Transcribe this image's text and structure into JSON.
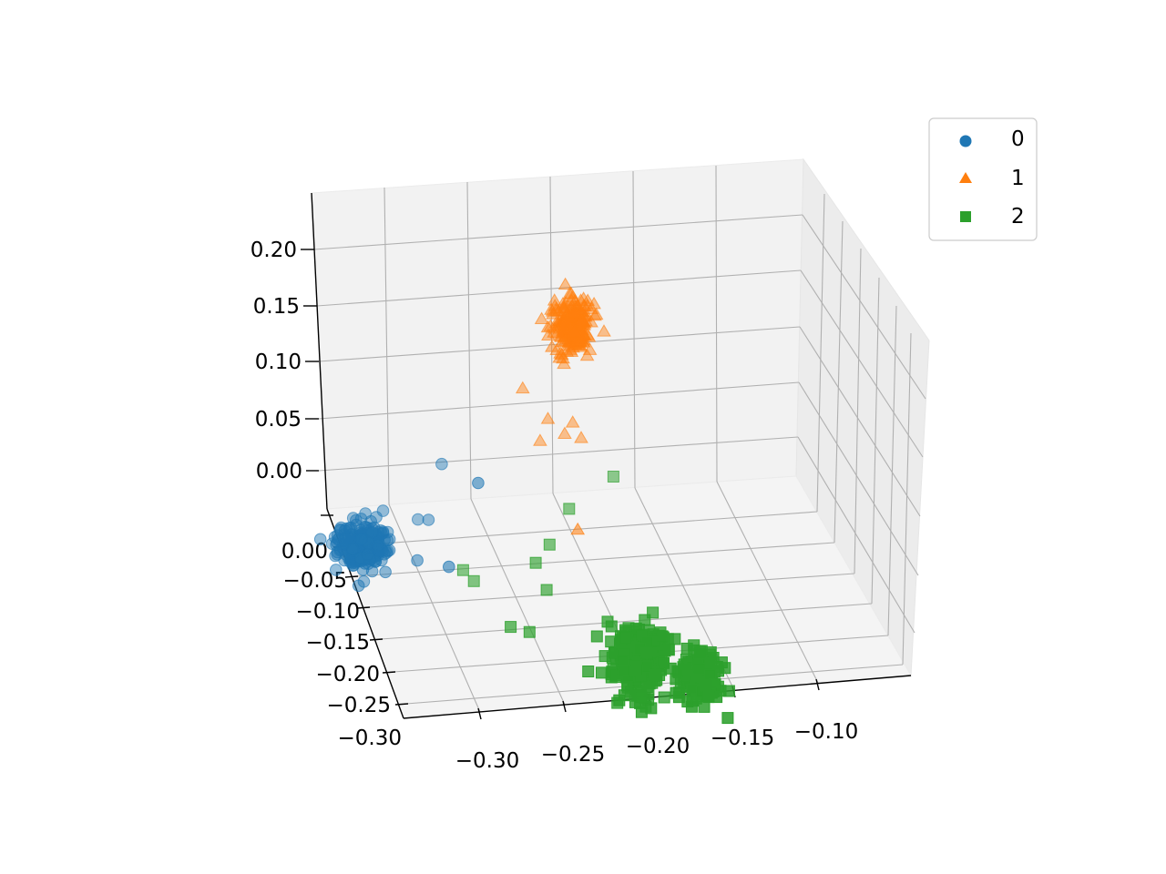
{
  "chart_data": {
    "type": "scatter",
    "dimensions": 3,
    "title": "",
    "xlabel": "",
    "ylabel": "",
    "zlabel": "",
    "x_ticks": [
      "−0.30",
      "−0.25",
      "−0.20",
      "−0.15",
      "−0.10"
    ],
    "y_ticks": [
      "0.00",
      "−0.05",
      "−0.10",
      "−0.15",
      "−0.20",
      "−0.25",
      "−0.30"
    ],
    "z_ticks": [
      "0.00",
      "0.05",
      "0.10",
      "0.15",
      "0.20"
    ],
    "xlim": [
      -0.32,
      -0.06
    ],
    "ylim": [
      -0.3,
      0.02
    ],
    "zlim": [
      -0.04,
      0.245
    ],
    "grid": true,
    "legend_position": "top-right",
    "series": [
      {
        "name": "0",
        "marker": "circle",
        "color": "#1f77b4",
        "clusters": [
          {
            "center": [
              -0.29,
              -0.01,
              0.005
            ],
            "spread": [
              0.008,
              0.006,
              0.01
            ],
            "count": 240
          }
        ],
        "points": [
          [
            -0.255,
            0.0,
            0.02
          ],
          [
            -0.25,
            -0.01,
            0.025
          ],
          [
            -0.24,
            0.0,
            0.07
          ],
          [
            -0.225,
            -0.05,
            0.08
          ],
          [
            -0.26,
            -0.03,
            0.0
          ],
          [
            -0.245,
            -0.06,
            0.01
          ]
        ]
      },
      {
        "name": "1",
        "marker": "triangle",
        "color": "#ff7f0e",
        "clusters": [
          {
            "center": [
              -0.16,
              0.0,
              0.19
            ],
            "spread": [
              0.006,
              0.005,
              0.012
            ],
            "count": 240
          }
        ],
        "points": [
          [
            -0.19,
            0.0,
            0.135
          ],
          [
            -0.175,
            0.0,
            0.105
          ],
          [
            -0.165,
            0.0,
            0.09
          ],
          [
            -0.155,
            0.0,
            0.085
          ],
          [
            -0.16,
            0.0,
            0.1
          ],
          [
            -0.165,
            -0.05,
            0.03
          ],
          [
            -0.18,
            0.0,
            0.085
          ]
        ]
      },
      {
        "name": "2",
        "marker": "square",
        "color": "#2ca02c",
        "clusters": [
          {
            "center": [
              -0.145,
              -0.16,
              -0.03
            ],
            "spread": [
              0.008,
              0.012,
              0.015
            ],
            "count": 260
          },
          {
            "center": [
              -0.11,
              -0.18,
              -0.04
            ],
            "spread": [
              0.006,
              0.01,
              0.01
            ],
            "count": 160
          }
        ],
        "points": [
          [
            -0.235,
            -0.05,
            0.0
          ],
          [
            -0.23,
            -0.06,
            -0.005
          ],
          [
            -0.215,
            -0.11,
            -0.02
          ],
          [
            -0.205,
            -0.12,
            -0.02
          ],
          [
            -0.195,
            -0.08,
            0.02
          ],
          [
            -0.185,
            -0.07,
            0.03
          ],
          [
            -0.17,
            -0.05,
            0.05
          ],
          [
            -0.14,
            -0.03,
            0.065
          ],
          [
            -0.19,
            -0.09,
            0.0
          ]
        ]
      }
    ]
  }
}
